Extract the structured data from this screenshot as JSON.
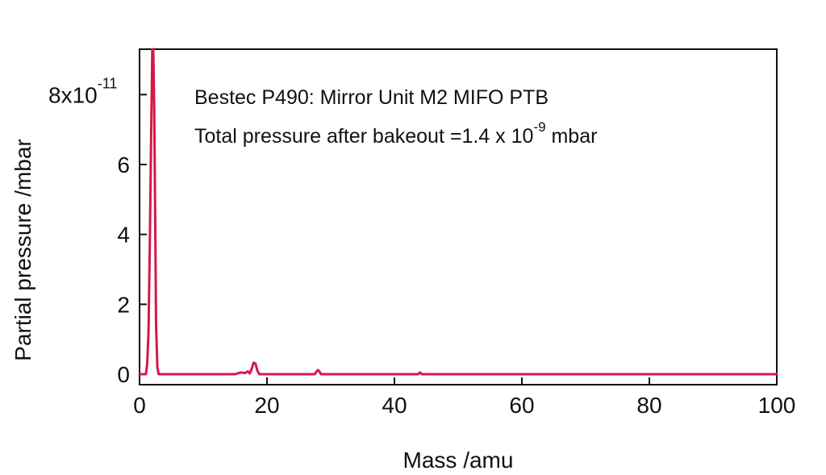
{
  "chart_data": {
    "type": "line",
    "annotation_title": "Bestec P490: Mirror Unit M2 MIFO PTB",
    "annotation_total": {
      "prefix": "Total pressure after bakeout =1.4 x 10",
      "exponent": "-9",
      "suffix": " mbar"
    },
    "xlabel": "Mass /amu",
    "ylabel": "Partial pressure /mbar",
    "xlim": [
      0,
      100
    ],
    "ylim": [
      -0.3,
      9.3
    ],
    "x_ticks": [
      {
        "value": 0,
        "label": "0"
      },
      {
        "value": 20,
        "label": "20"
      },
      {
        "value": 40,
        "label": "40"
      },
      {
        "value": 60,
        "label": "60"
      },
      {
        "value": 80,
        "label": "80"
      },
      {
        "value": 100,
        "label": "100"
      }
    ],
    "y_ticks": [
      {
        "value": 0,
        "label": "0"
      },
      {
        "value": 2,
        "label": "2"
      },
      {
        "value": 4,
        "label": "4"
      },
      {
        "value": 6,
        "label": "6"
      },
      {
        "value": 8,
        "label": "8x10",
        "exponent": "-11"
      }
    ],
    "y_unit_scale": "1e-11 mbar",
    "series": [
      {
        "color": "#d6174a",
        "points": [
          [
            0,
            0.0
          ],
          [
            1.0,
            0.0
          ],
          [
            1.2,
            0.3
          ],
          [
            1.4,
            1.2
          ],
          [
            1.6,
            3.5
          ],
          [
            1.8,
            6.5
          ],
          [
            2.0,
            9.3
          ],
          [
            2.15,
            9.3
          ],
          [
            2.3,
            7.6
          ],
          [
            2.45,
            4.5
          ],
          [
            2.6,
            1.4
          ],
          [
            2.8,
            0.2
          ],
          [
            3.0,
            0.0
          ],
          [
            15.0,
            0.0
          ],
          [
            15.5,
            0.03
          ],
          [
            16.0,
            0.05
          ],
          [
            16.5,
            0.03
          ],
          [
            17.0,
            0.08
          ],
          [
            17.3,
            0.02
          ],
          [
            17.6,
            0.15
          ],
          [
            17.9,
            0.33
          ],
          [
            18.2,
            0.3
          ],
          [
            18.5,
            0.1
          ],
          [
            18.8,
            0.0
          ],
          [
            27.5,
            0.0
          ],
          [
            27.8,
            0.08
          ],
          [
            28.0,
            0.12
          ],
          [
            28.2,
            0.08
          ],
          [
            28.5,
            0.0
          ],
          [
            43.7,
            0.0
          ],
          [
            44.0,
            0.05
          ],
          [
            44.3,
            0.0
          ],
          [
            100,
            0.0
          ]
        ]
      }
    ],
    "grid": false,
    "legend": "none"
  }
}
